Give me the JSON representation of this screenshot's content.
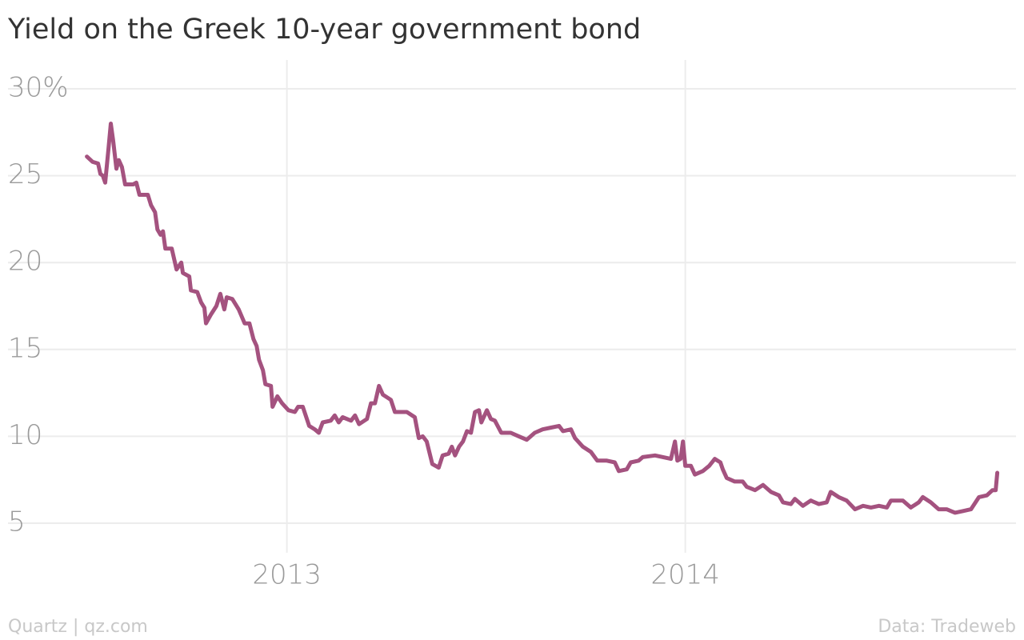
{
  "chart_data": {
    "type": "line",
    "title": "Yield on the Greek 10-year government bond",
    "source": "Data: Tradeweb",
    "credit": "Quartz | qz.com",
    "color": "#a4527f",
    "grid": true,
    "xlim": [
      2012.3,
      2014.83
    ],
    "xticks": [
      2013,
      2014
    ],
    "ylim": [
      3.3,
      31
    ],
    "yticks": [
      {
        "value": 30,
        "label": "30%"
      },
      25,
      20,
      15,
      10,
      5
    ],
    "x": [
      2012.498,
      2012.512,
      2012.526,
      2012.532,
      2012.538,
      2012.544,
      2012.552,
      2012.558,
      2012.564,
      2012.572,
      2012.578,
      2012.586,
      2012.594,
      2012.614,
      2012.622,
      2012.63,
      2012.651,
      2012.659,
      2012.669,
      2012.675,
      2012.683,
      2012.689,
      2012.695,
      2012.711,
      2012.723,
      2012.735,
      2012.739,
      2012.755,
      2012.759,
      2012.775,
      2012.785,
      2012.793,
      2012.797,
      2012.809,
      2012.823,
      2012.833,
      2012.843,
      2012.849,
      2012.863,
      2012.879,
      2012.894,
      2012.906,
      2012.916,
      2012.924,
      2012.93,
      2012.94,
      2012.946,
      2012.96,
      2012.964,
      2012.976,
      2012.988,
      2013.004,
      2013.02,
      2013.028,
      2013.04,
      2013.056,
      2013.07,
      2013.08,
      2013.09,
      2013.11,
      2013.12,
      2013.13,
      2013.14,
      2013.161,
      2013.171,
      2013.181,
      2013.201,
      2013.211,
      2013.221,
      2013.231,
      2013.241,
      2013.261,
      2013.271,
      2013.301,
      2013.321,
      2013.331,
      2013.341,
      2013.351,
      2013.365,
      2013.381,
      2013.391,
      2013.406,
      2013.414,
      2013.422,
      2013.432,
      2013.442,
      2013.452,
      2013.462,
      2013.472,
      2013.482,
      2013.488,
      2013.502,
      2013.512,
      2013.522,
      2013.538,
      2013.562,
      2013.582,
      2013.602,
      2013.622,
      2013.642,
      2013.663,
      2013.683,
      2013.693,
      2013.713,
      2013.723,
      2013.743,
      2013.763,
      2013.779,
      2013.803,
      2013.823,
      2013.833,
      2013.853,
      2013.863,
      2013.883,
      2013.893,
      2013.924,
      2013.944,
      2013.964,
      2013.974,
      2013.98,
      2013.988,
      2013.994,
      2014.0,
      2014.014,
      2014.024,
      2014.044,
      2014.06,
      2014.074,
      2014.088,
      2014.094,
      2014.104,
      2014.124,
      2014.144,
      2014.154,
      2014.175,
      2014.195,
      2014.215,
      2014.235,
      2014.245,
      2014.265,
      2014.275,
      2014.295,
      2014.315,
      2014.335,
      2014.355,
      2014.365,
      2014.385,
      2014.405,
      2014.426,
      2014.446,
      2014.466,
      2014.486,
      2014.506,
      2014.516,
      2014.546,
      2014.566,
      2014.586,
      2014.596,
      2014.616,
      2014.636,
      2014.656,
      2014.677,
      2014.697,
      2014.717,
      2014.737,
      2014.757,
      2014.771,
      2014.779,
      2014.783
    ],
    "values": [
      26.1,
      25.8,
      25.7,
      25.1,
      25.0,
      24.6,
      26.5,
      28.0,
      27.0,
      25.4,
      25.9,
      25.5,
      24.5,
      24.5,
      24.6,
      23.9,
      23.9,
      23.3,
      22.9,
      21.9,
      21.6,
      21.8,
      20.8,
      20.8,
      19.6,
      20.0,
      19.4,
      19.2,
      18.4,
      18.3,
      17.7,
      17.4,
      16.5,
      17.0,
      17.5,
      18.2,
      17.3,
      18.0,
      17.9,
      17.3,
      16.5,
      16.5,
      15.6,
      15.2,
      14.4,
      13.8,
      13.0,
      12.9,
      11.7,
      12.3,
      11.9,
      11.5,
      11.4,
      11.7,
      11.7,
      10.6,
      10.4,
      10.2,
      10.8,
      10.9,
      11.2,
      10.8,
      11.1,
      10.9,
      11.2,
      10.7,
      11.0,
      11.9,
      11.9,
      12.9,
      12.4,
      12.1,
      11.4,
      11.4,
      11.1,
      9.9,
      10.0,
      9.7,
      8.4,
      8.2,
      8.9,
      9.0,
      9.4,
      8.9,
      9.4,
      9.7,
      10.3,
      10.2,
      11.4,
      11.5,
      10.8,
      11.5,
      11.0,
      10.9,
      10.2,
      10.2,
      10.0,
      9.8,
      10.2,
      10.4,
      10.5,
      10.6,
      10.3,
      10.4,
      9.9,
      9.4,
      9.1,
      8.6,
      8.6,
      8.5,
      8.0,
      8.1,
      8.5,
      8.6,
      8.8,
      8.9,
      8.8,
      8.7,
      9.7,
      8.6,
      8.7,
      9.7,
      8.3,
      8.3,
      7.8,
      8.0,
      8.3,
      8.7,
      8.5,
      8.1,
      7.6,
      7.4,
      7.4,
      7.1,
      6.9,
      7.2,
      6.8,
      6.6,
      6.2,
      6.1,
      6.4,
      6.0,
      6.3,
      6.1,
      6.2,
      6.8,
      6.5,
      6.3,
      5.8,
      6.0,
      5.9,
      6.0,
      5.9,
      6.3,
      6.3,
      5.9,
      6.2,
      6.5,
      6.2,
      5.8,
      5.8,
      5.6,
      5.7,
      5.8,
      6.5,
      6.6,
      6.9,
      6.9,
      7.9
    ]
  }
}
